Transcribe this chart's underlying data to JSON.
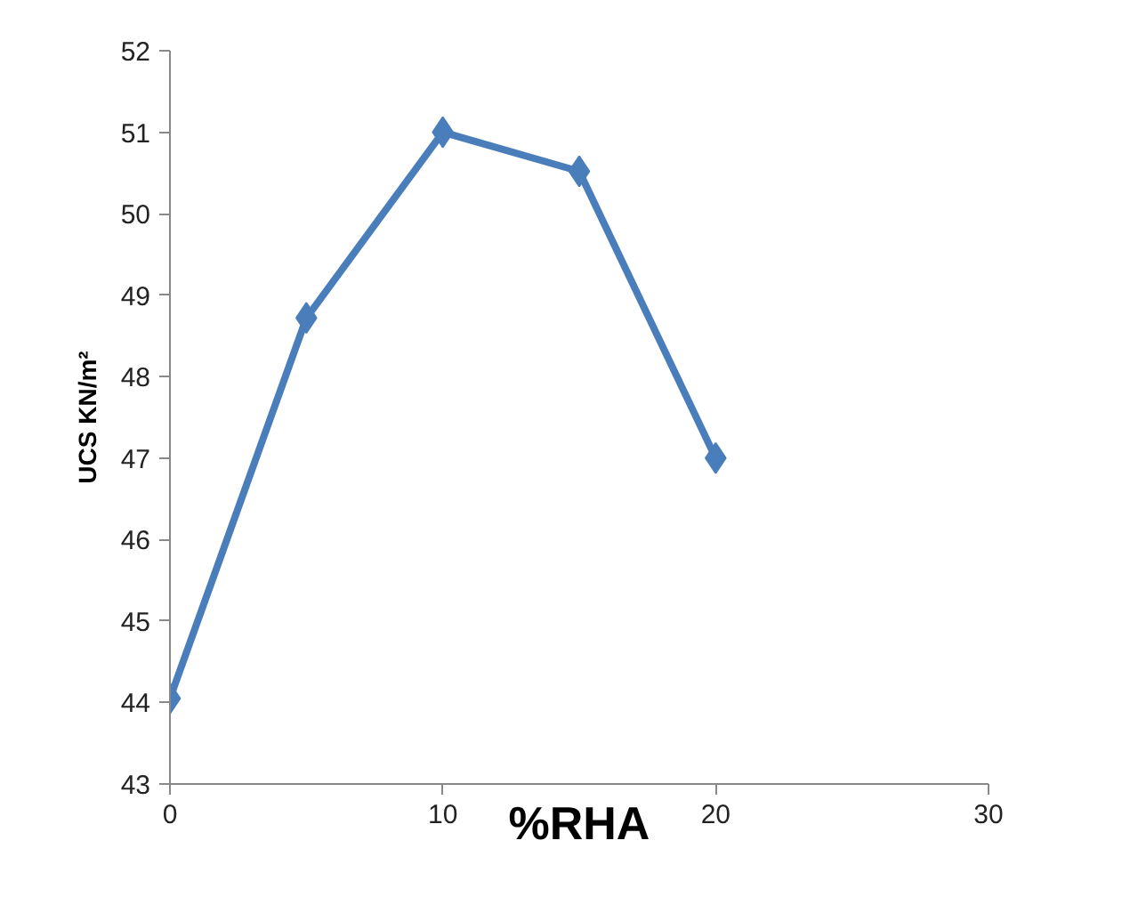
{
  "chart_data": {
    "type": "line",
    "xlabel": "%RHA",
    "ylabel": "UCS KN/m²",
    "x": [
      0,
      5,
      10,
      15,
      20
    ],
    "series": [
      {
        "color": "#4a7ebb",
        "values": [
          44.05,
          48.72,
          51.0,
          50.52,
          47.0
        ]
      }
    ],
    "xlim": [
      0,
      30
    ],
    "xticks": [
      0,
      10,
      20,
      30
    ],
    "ylim": [
      43,
      52
    ],
    "yticks": [
      43,
      44,
      45,
      46,
      47,
      48,
      49,
      50,
      51,
      52
    ],
    "grid": false,
    "marker": "diamond",
    "line_style": "solid"
  }
}
